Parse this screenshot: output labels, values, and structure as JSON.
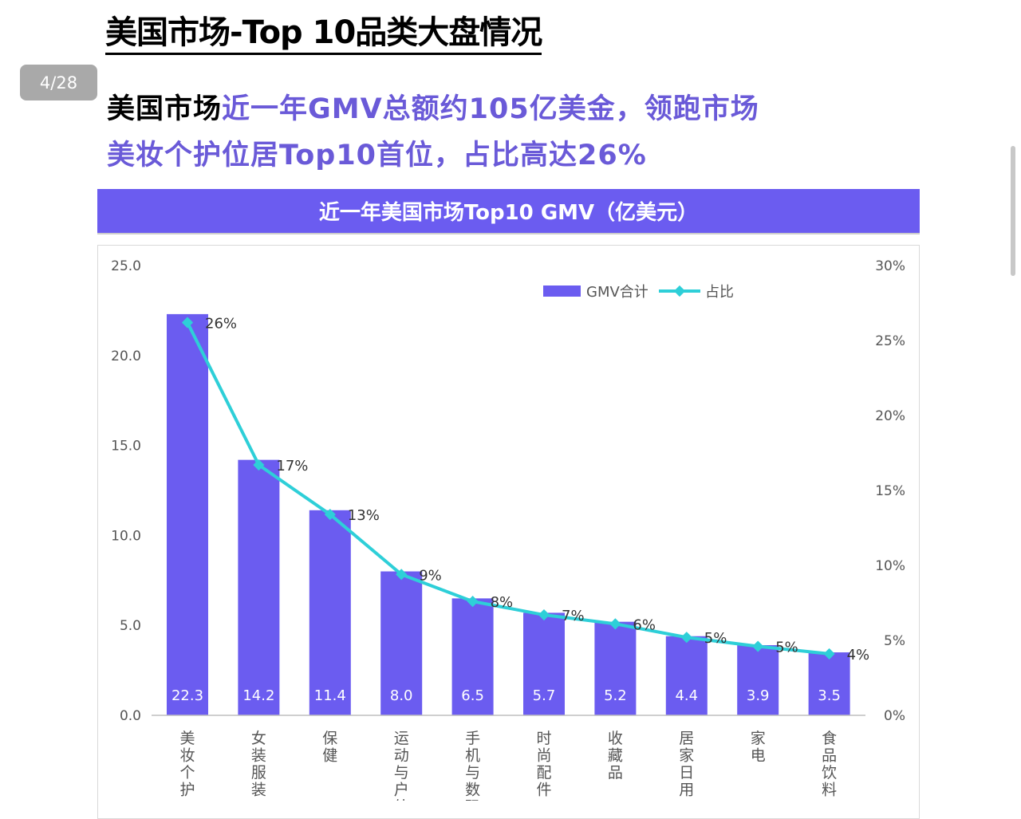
{
  "page": {
    "title": "美国市场-Top 10品类大盘情况",
    "page_indicator": "4/28",
    "headline_black": "美国市场",
    "headline_purple_1": "近一年GMV总额约105亿美金，领跑市场",
    "headline_purple_2": "美妆个护位居Top10首位，占比高达26%",
    "chart_banner": "近一年美国市场Top10 GMV（亿美元）"
  },
  "colors": {
    "bar": "#6b5cf0",
    "line": "#2ecfd8",
    "headline_accent": "#6a5ad8"
  },
  "chart_data": {
    "type": "bar+line",
    "title": "近一年美国市场Top10 GMV（亿美元）",
    "categories": [
      "美妆个护",
      "女装服装",
      "保健",
      "运动与户外",
      "手机与数码",
      "时尚配件",
      "收藏品",
      "居家日用",
      "家电",
      "食品饮料"
    ],
    "series": [
      {
        "name": "GMV合计",
        "type": "bar",
        "axis": "left",
        "values": [
          22.3,
          14.2,
          11.4,
          8.0,
          6.5,
          5.7,
          5.2,
          4.4,
          3.9,
          3.5
        ],
        "labels": [
          "22.3",
          "14.2",
          "11.4",
          "8.0",
          "6.5",
          "5.7",
          "5.2",
          "4.4",
          "3.9",
          "3.5"
        ]
      },
      {
        "name": "占比",
        "type": "line",
        "axis": "right",
        "values": [
          26.2,
          16.7,
          13.4,
          9.4,
          7.6,
          6.7,
          6.1,
          5.2,
          4.6,
          4.1
        ],
        "labels": [
          "26%",
          "17%",
          "13%",
          "9%",
          "8%",
          "7%",
          "6%",
          "5%",
          "5%",
          "4%"
        ]
      }
    ],
    "y_left": {
      "range": [
        0,
        25
      ],
      "ticks": [
        "0.0",
        "5.0",
        "10.0",
        "15.0",
        "20.0",
        "25.0"
      ]
    },
    "y_right": {
      "range": [
        0,
        30
      ],
      "ticks": [
        "0%",
        "5%",
        "10%",
        "15%",
        "20%",
        "25%",
        "30%"
      ]
    },
    "legend": {
      "placement": "top-right",
      "items": [
        "GMV合计",
        "占比"
      ]
    },
    "grid": false
  }
}
